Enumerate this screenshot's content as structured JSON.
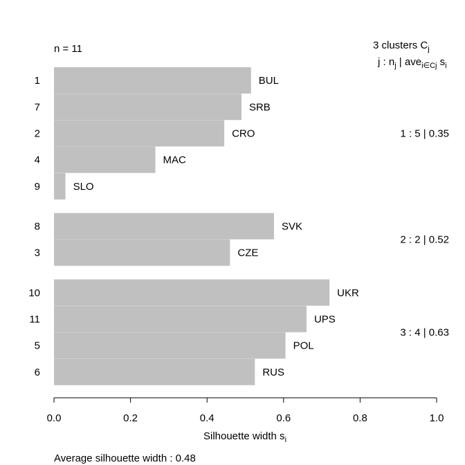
{
  "chart_data": {
    "type": "bar",
    "orientation": "horizontal",
    "n_label": "n = 11",
    "header": {
      "clusters_text": "3  clusters  C",
      "clusters_sub": "j",
      "columns_j": "j :  n",
      "columns_j_sub": "j",
      "columns_ave": " | ave",
      "columns_ave_sub": "i∈Cj",
      "columns_s": "  s",
      "columns_s_sub": "i"
    },
    "clusters": [
      {
        "id": 1,
        "label": "1 :   5  |  0.35",
        "items": [
          {
            "index": "1",
            "name": "BUL",
            "value": 0.515
          },
          {
            "index": "7",
            "name": "SRB",
            "value": 0.49
          },
          {
            "index": "2",
            "name": "CRO",
            "value": 0.445
          },
          {
            "index": "4",
            "name": "MAC",
            "value": 0.265
          },
          {
            "index": "9",
            "name": "SLO",
            "value": 0.03
          }
        ]
      },
      {
        "id": 2,
        "label": "2 :   2  |  0.52",
        "items": [
          {
            "index": "8",
            "name": "SVK",
            "value": 0.575
          },
          {
            "index": "3",
            "name": "CZE",
            "value": 0.46
          }
        ]
      },
      {
        "id": 3,
        "label": "3 :   4  |  0.63",
        "items": [
          {
            "index": "10",
            "name": "UKR",
            "value": 0.72
          },
          {
            "index": "11",
            "name": "UPS",
            "value": 0.66
          },
          {
            "index": "5",
            "name": "POL",
            "value": 0.605
          },
          {
            "index": "6",
            "name": "RUS",
            "value": 0.525
          }
        ]
      }
    ],
    "xlim": [
      0,
      1
    ],
    "x_ticks": [
      "0.0",
      "0.2",
      "0.4",
      "0.6",
      "0.8",
      "1.0"
    ],
    "xlabel": "Silhouette width s",
    "xlabel_sub": "i",
    "footer": "Average silhouette width :  0.48",
    "bar_color": "#c0c0c0"
  }
}
